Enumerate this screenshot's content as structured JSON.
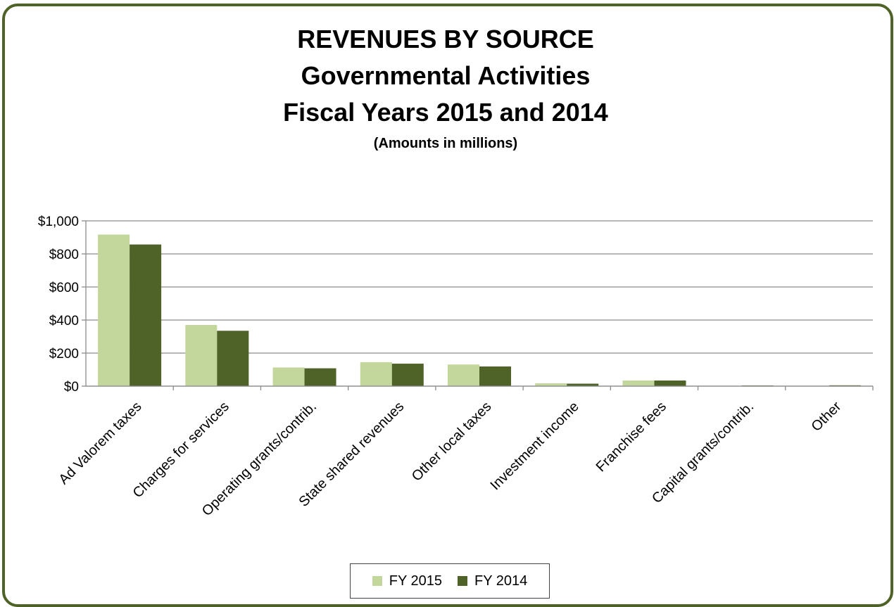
{
  "chart_data": {
    "type": "bar",
    "title": "REVENUES BY SOURCE",
    "subtitle_lines": [
      "Governmental Activities",
      "Fiscal Years 2015 and 2014"
    ],
    "note": "(Amounts in millions)",
    "xlabel": "",
    "ylabel": "",
    "ylim": [
      0,
      1000
    ],
    "yticks": [
      0,
      200,
      400,
      600,
      800,
      1000
    ],
    "ytick_labels": [
      "$0",
      "$200",
      "$400",
      "$600",
      "$800",
      "$1,000"
    ],
    "grid": true,
    "legend_position": "bottom",
    "categories": [
      "Ad Valorem taxes",
      "Charges for services",
      "Operating grants/contrib.",
      "State shared revenues",
      "Other local taxes",
      "Investment income",
      "Franchise fees",
      "Capital grants/contrib.",
      "Other"
    ],
    "series": [
      {
        "name": "FY 2015",
        "color": "#c3d69b",
        "values": [
          917,
          370,
          113,
          145,
          131,
          17,
          34,
          2,
          1
        ]
      },
      {
        "name": "FY 2014",
        "color": "#4f6228",
        "values": [
          857,
          335,
          108,
          136,
          119,
          15,
          34,
          4,
          5
        ]
      }
    ]
  }
}
